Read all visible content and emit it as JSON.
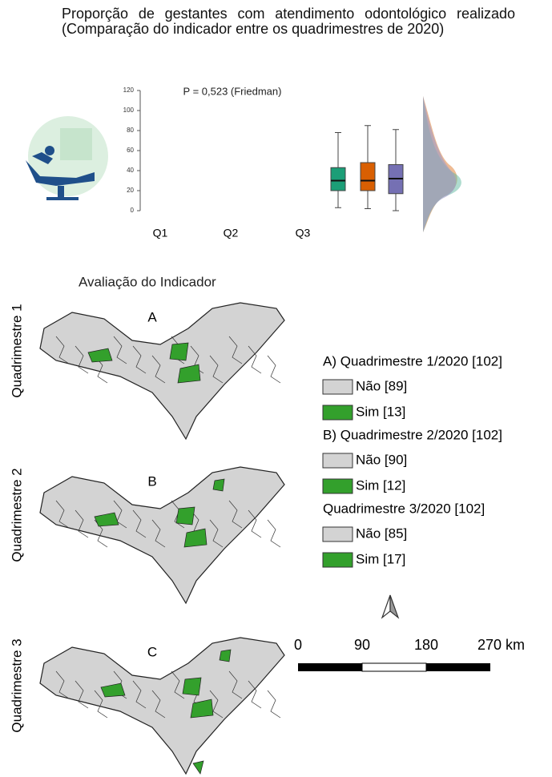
{
  "title": "Proporção de gestantes com atendimento odontológico realizado (Comparação do indicador entre os quadrimestres de 2020)",
  "chart_data": {
    "type": "box",
    "annotation": "P = 0,523 (Friedman)",
    "categories": [
      "Q1",
      "Q2",
      "Q3"
    ],
    "colors": [
      "#1b9e77",
      "#d95f02",
      "#7570b3"
    ],
    "boxes": [
      {
        "min": 3,
        "q1": 20,
        "median": 30,
        "q3": 43,
        "max": 78
      },
      {
        "min": 2,
        "q1": 20,
        "median": 30,
        "q3": 48,
        "max": 85
      },
      {
        "min": 0,
        "q1": 17,
        "median": 32,
        "q3": 46,
        "max": 81
      }
    ],
    "ylim": [
      0,
      120
    ],
    "yticks": [
      0,
      20,
      40,
      60,
      80,
      100,
      120
    ]
  },
  "maps": {
    "title": "Avaliação do Indicador",
    "panels": [
      {
        "row_label": "Quadrimestre 1",
        "letter": "A"
      },
      {
        "row_label": "Quadrimestre 2",
        "letter": "B"
      },
      {
        "row_label": "Quadrimestre 3",
        "letter": "C"
      }
    ]
  },
  "legend": {
    "groups": [
      {
        "title": "A) Quadrimestre 1/2020 [102]",
        "items": [
          {
            "label": "Não [89]",
            "color": "#d3d3d3"
          },
          {
            "label": "Sim [13]",
            "color": "#33a02c"
          }
        ]
      },
      {
        "title": "B) Quadrimestre 2/2020 [102]",
        "items": [
          {
            "label": "Não [90]",
            "color": "#d3d3d3"
          },
          {
            "label": "Sim [12]",
            "color": "#33a02c"
          }
        ]
      },
      {
        "title": "Quadrimestre 3/2020 [102]",
        "items": [
          {
            "label": "Não [85]",
            "color": "#d3d3d3"
          },
          {
            "label": "Sim [17]",
            "color": "#33a02c"
          }
        ]
      }
    ]
  },
  "scale_bar": {
    "labels": [
      "0",
      "90",
      "180",
      "270 km"
    ]
  }
}
